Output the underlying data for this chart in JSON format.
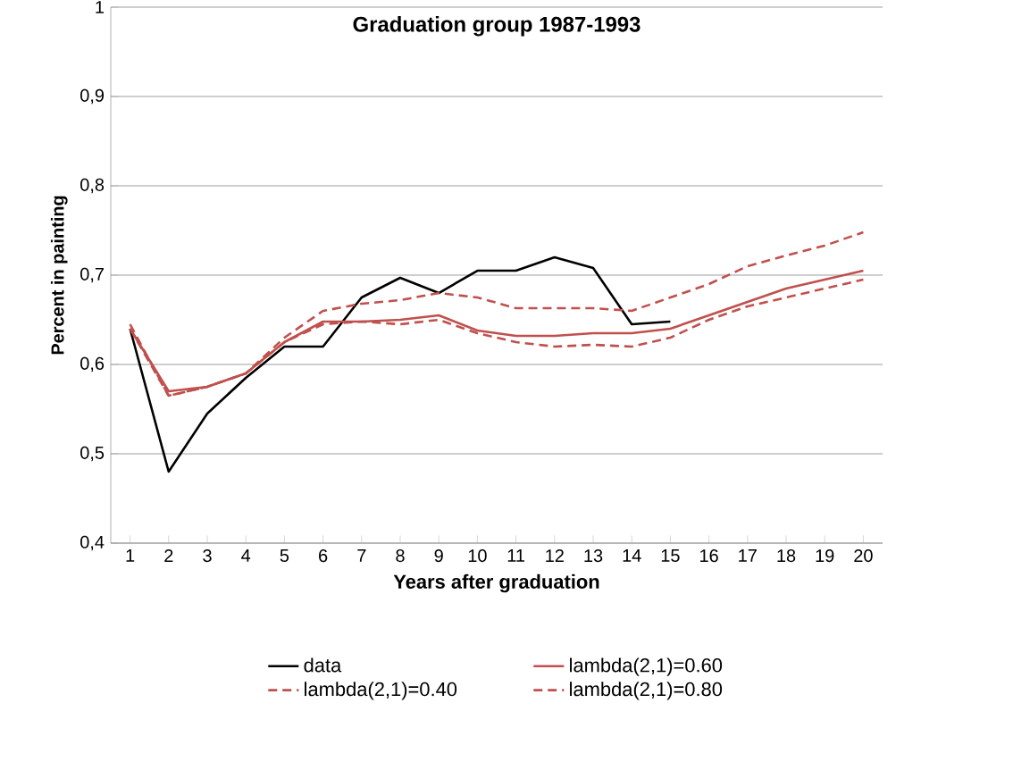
{
  "chart_data": {
    "type": "line",
    "title": "Graduation group 1987-1993",
    "xlabel": "Years after graduation",
    "ylabel": "Percent in painting",
    "categories": [
      "1",
      "2",
      "3",
      "4",
      "5",
      "6",
      "7",
      "8",
      "9",
      "10",
      "11",
      "12",
      "13",
      "14",
      "15",
      "16",
      "17",
      "18",
      "19",
      "20"
    ],
    "series": [
      {
        "name": "data",
        "color": "#000000",
        "line_style": "solid",
        "values": [
          0.64,
          0.48,
          0.545,
          0.585,
          0.62,
          0.62,
          0.675,
          0.697,
          0.68,
          0.705,
          0.705,
          0.72,
          0.708,
          0.645,
          0.648,
          null,
          null,
          null,
          null,
          null
        ]
      },
      {
        "name": "lambda(2,1)=0.60",
        "color": "#c0504d",
        "line_style": "solid",
        "values": [
          0.64,
          0.57,
          0.575,
          0.59,
          0.625,
          0.648,
          0.648,
          0.65,
          0.655,
          0.638,
          0.632,
          0.632,
          0.635,
          0.635,
          0.64,
          0.655,
          0.67,
          0.685,
          0.695,
          0.705
        ]
      },
      {
        "name": "lambda(2,1)=0.40",
        "color": "#c0504d",
        "line_style": "dashed",
        "values": [
          0.645,
          0.565,
          0.575,
          0.59,
          0.63,
          0.66,
          0.668,
          0.672,
          0.68,
          0.675,
          0.663,
          0.663,
          0.663,
          0.66,
          0.675,
          0.69,
          0.71,
          0.722,
          0.733,
          0.748
        ]
      },
      {
        "name": "lambda(2,1)=0.80",
        "color": "#c0504d",
        "line_style": "dashed",
        "values": [
          0.64,
          0.565,
          0.575,
          0.59,
          0.625,
          0.645,
          0.648,
          0.645,
          0.65,
          0.635,
          0.625,
          0.62,
          0.622,
          0.62,
          0.63,
          0.65,
          0.665,
          0.675,
          0.685,
          0.695
        ]
      }
    ],
    "ylim": [
      0.4,
      1
    ],
    "yticks": [
      {
        "value": 0.4,
        "label": "0,4"
      },
      {
        "value": 0.5,
        "label": "0,5"
      },
      {
        "value": 0.6,
        "label": "0,6"
      },
      {
        "value": 0.7,
        "label": "0,7"
      },
      {
        "value": 0.8,
        "label": "0,8"
      },
      {
        "value": 0.9,
        "label": "0,9"
      },
      1
    ],
    "grid": "y",
    "legend": "bottom",
    "marker": "none"
  }
}
